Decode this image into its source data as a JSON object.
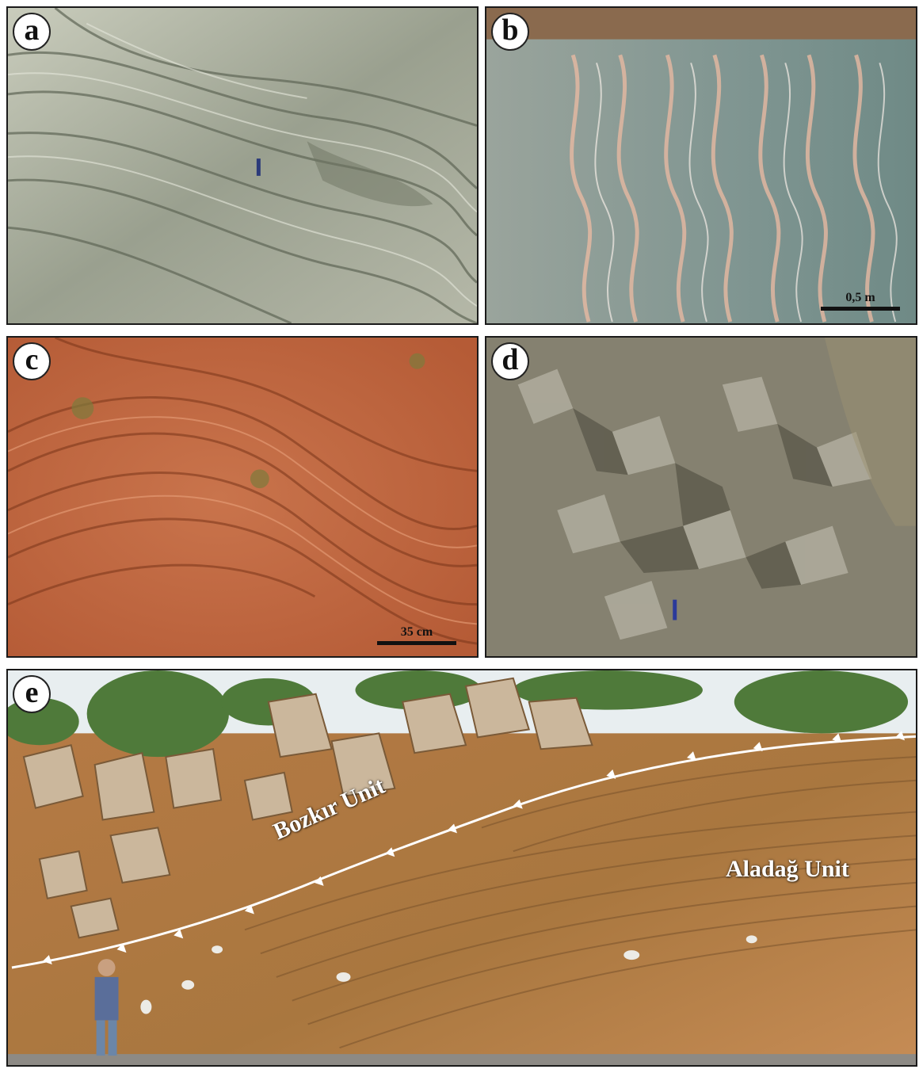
{
  "panels": [
    {
      "letter": "a"
    },
    {
      "letter": "b",
      "scale_label": "0,5 m"
    },
    {
      "letter": "c",
      "scale_label": "35 cm"
    },
    {
      "letter": "d"
    },
    {
      "letter": "e",
      "unit_upper": "Bozkır Unit",
      "unit_lower": "Aladağ Unit"
    }
  ],
  "colors": {
    "panel_a_rock": "#9aa08f",
    "panel_b_rock": "#7f9591",
    "panel_c_rock": "#c0653e",
    "panel_d_rock": "#8a8672",
    "panel_e_soil": "#b27a45",
    "thrust_line": "#ffffff"
  }
}
